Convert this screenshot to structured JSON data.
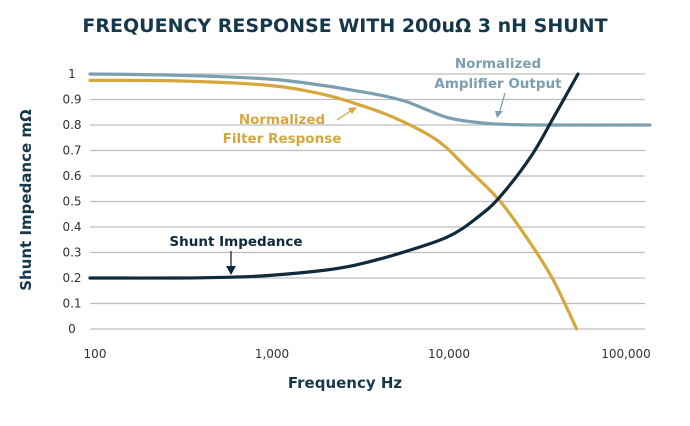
{
  "chart_data": {
    "type": "line",
    "title": "FREQUENCY RESPONSE WITH 200uΩ 3 nH SHUNT",
    "xlabel": "Frequency Hz",
    "ylabel": "Shunt Impedance mΩ",
    "x_scale": "log",
    "xlim": [
      100,
      140000
    ],
    "ylim": [
      0,
      1
    ],
    "x_ticks": [
      {
        "value": 100,
        "label": "100"
      },
      {
        "value": 1000,
        "label": "1,000"
      },
      {
        "value": 10000,
        "label": "10,000"
      },
      {
        "value": 100000,
        "label": "100,000"
      }
    ],
    "y_ticks": [
      {
        "value": 0,
        "label": "0"
      },
      {
        "value": 0.1,
        "label": "0.1"
      },
      {
        "value": 0.2,
        "label": "0.2"
      },
      {
        "value": 0.3,
        "label": "0.3"
      },
      {
        "value": 0.4,
        "label": "0.4"
      },
      {
        "value": 0.5,
        "label": "0.5"
      },
      {
        "value": 0.6,
        "label": "0.6"
      },
      {
        "value": 0.7,
        "label": "0.7"
      },
      {
        "value": 0.8,
        "label": "0.8"
      },
      {
        "value": 0.9,
        "label": "0.9"
      },
      {
        "value": 1,
        "label": "1"
      }
    ],
    "grid": "horizontal",
    "series": [
      {
        "name": "Normalized Amplifier Output",
        "label_lines": [
          "Normalized",
          "Amplifier Output"
        ],
        "color": "#7b9fb1",
        "points": [
          [
            100,
            1.0
          ],
          [
            300,
            0.995
          ],
          [
            1000,
            0.98
          ],
          [
            2000,
            0.955
          ],
          [
            3000,
            0.935
          ],
          [
            4000,
            0.92
          ],
          [
            5000,
            0.905
          ],
          [
            6000,
            0.89
          ],
          [
            8000,
            0.855
          ],
          [
            10000,
            0.83
          ],
          [
            13000,
            0.815
          ],
          [
            20000,
            0.803
          ],
          [
            40000,
            0.8
          ],
          [
            140000,
            0.8
          ]
        ]
      },
      {
        "name": "Normalized Filter Response",
        "label_lines": [
          "Normalized",
          "Filter Response"
        ],
        "color": "#d6a73c",
        "points": [
          [
            100,
            0.975
          ],
          [
            300,
            0.973
          ],
          [
            1000,
            0.955
          ],
          [
            2000,
            0.92
          ],
          [
            3000,
            0.885
          ],
          [
            5000,
            0.83
          ],
          [
            8800,
            0.74
          ],
          [
            13000,
            0.63
          ],
          [
            20000,
            0.5
          ],
          [
            30000,
            0.33
          ],
          [
            40000,
            0.19
          ],
          [
            54000,
            0.0
          ]
        ]
      },
      {
        "name": "Shunt Impedance",
        "label_lines": [
          "Shunt Impedance"
        ],
        "color": "#0f2a3a",
        "points": [
          [
            100,
            0.2
          ],
          [
            300,
            0.2
          ],
          [
            600,
            0.203
          ],
          [
            1000,
            0.21
          ],
          [
            2000,
            0.23
          ],
          [
            3000,
            0.25
          ],
          [
            5000,
            0.29
          ],
          [
            10000,
            0.36
          ],
          [
            15000,
            0.44
          ],
          [
            20000,
            0.52
          ],
          [
            30000,
            0.68
          ],
          [
            40000,
            0.83
          ],
          [
            55000,
            1.0
          ]
        ]
      }
    ]
  }
}
